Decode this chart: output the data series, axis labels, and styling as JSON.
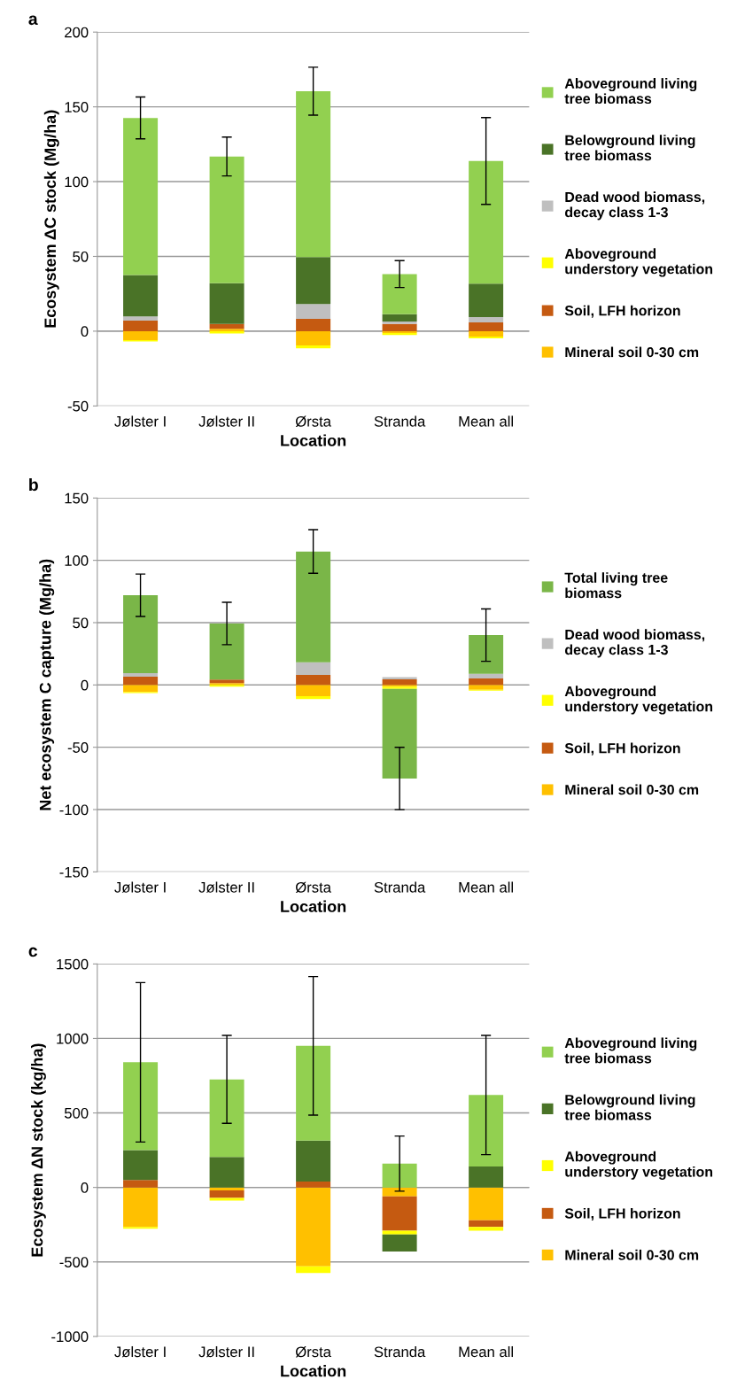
{
  "chart_data": [
    {
      "type": "bar",
      "title": "a",
      "xlabel": "Location",
      "ylabel": "Ecosystem ΔC stock (Mg/ha)",
      "stacked": true,
      "grid": "y",
      "legend": "right",
      "categories": [
        "Jølster I",
        "Jølster II",
        "Ørsta",
        "Stranda",
        "Mean all"
      ],
      "ylim": [
        -50,
        200
      ],
      "yticks": [
        -50,
        0,
        50,
        100,
        150,
        200
      ],
      "series": [
        {
          "name": "Mineral soil 0-30 cm",
          "color": "#ffc000",
          "values": [
            -6,
            1.5,
            -9.5,
            -1.2,
            -3.6
          ]
        },
        {
          "name": "Soil, LFH horizon",
          "color": "#c55a11",
          "values": [
            7,
            3.4,
            8.3,
            4.8,
            5.8
          ]
        },
        {
          "name": "Aboveground\nunderstory vegetation",
          "color": "#ffff00",
          "values": [
            -0.8,
            -1.5,
            -2,
            -1.4,
            -1.2
          ]
        },
        {
          "name": "Dead wood biomass,\ndecay class 1-3",
          "color": "#bfbfbf",
          "values": [
            2.8,
            0,
            9.9,
            1.6,
            3.6
          ]
        },
        {
          "name": "Belowground living\ntree biomass",
          "color": "#4a7327",
          "values": [
            27.8,
            27.2,
            31.3,
            5,
            22.4
          ]
        },
        {
          "name": "Aboveground living\ntree biomass",
          "color": "#92d050",
          "values": [
            105,
            84.7,
            111,
            26.8,
            82
          ],
          "errors": [
            14,
            13,
            16,
            9,
            29
          ]
        }
      ]
    },
    {
      "type": "bar",
      "title": "b",
      "xlabel": "Location",
      "ylabel": "Net ecosystem C capture (Mg/ha)",
      "stacked": true,
      "grid": "y",
      "legend": "right",
      "categories": [
        "Jølster I",
        "Jølster II",
        "Ørsta",
        "Stranda",
        "Mean all"
      ],
      "ylim": [
        -150,
        150
      ],
      "yticks": [
        -150,
        -100,
        -50,
        0,
        50,
        100,
        150
      ],
      "series": [
        {
          "name": "Mineral soil 0-30 cm",
          "color": "#ffc000",
          "values": [
            -5.7,
            1.5,
            -9,
            -1.4,
            -3.8
          ]
        },
        {
          "name": "Soil, LFH horizon",
          "color": "#c55a11",
          "values": [
            6.6,
            2.8,
            8.1,
            4.5,
            5.2
          ]
        },
        {
          "name": "Aboveground\nunderstory vegetation",
          "color": "#ffff00",
          "values": [
            -0.9,
            -1.4,
            -2.4,
            -1.7,
            -0.7
          ]
        },
        {
          "name": "Dead wood biomass,\ndecay class 1-3",
          "color": "#bfbfbf",
          "values": [
            2.8,
            0,
            10,
            1.7,
            3.8
          ]
        },
        {
          "name": "Total living tree\nbiomass",
          "color": "#7ab648",
          "values": [
            62.6,
            45,
            89,
            -72,
            31
          ],
          "errors": [
            17,
            17,
            17.5,
            25,
            21
          ]
        }
      ]
    },
    {
      "type": "bar",
      "title": "c",
      "xlabel": "Location",
      "ylabel": "Ecosystem ΔN stock (kg/ha)",
      "stacked": true,
      "grid": "y",
      "legend": "right",
      "categories": [
        "Jølster I",
        "Jølster II",
        "Ørsta",
        "Stranda",
        "Mean all"
      ],
      "ylim": [
        -1000,
        1500
      ],
      "yticks": [
        -1000,
        -500,
        0,
        500,
        1000,
        1500
      ],
      "series": [
        {
          "name": "Mineral soil 0-30 cm",
          "color": "#ffc000",
          "values": [
            -265,
            -20,
            -530,
            -60,
            -220
          ]
        },
        {
          "name": "Soil, LFH horizon",
          "color": "#c55a11",
          "values": [
            50,
            -50,
            40,
            -230,
            -45
          ]
        },
        {
          "name": "Aboveground\nunderstory vegetation",
          "color": "#ffff00",
          "values": [
            -12,
            -18,
            -45,
            -25,
            -25
          ]
        },
        {
          "name": "Belowground living\ntree biomass",
          "color": "#4a7327",
          "values": [
            200,
            205,
            275,
            -115,
            140
          ]
        },
        {
          "name": "Aboveground living\ntree biomass",
          "color": "#92d050",
          "values": [
            590,
            520,
            635,
            160,
            480
          ],
          "errors": [
            535,
            295,
            465,
            185,
            400
          ]
        }
      ]
    }
  ]
}
